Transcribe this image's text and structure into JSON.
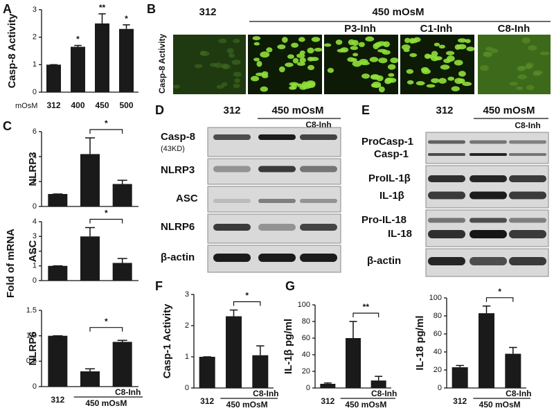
{
  "panel_labels": [
    "A",
    "B",
    "C",
    "D",
    "E",
    "F",
    "G"
  ],
  "panel_b": {
    "control": "312",
    "group": "450 mOsM",
    "treatments": [
      "P3-Inh",
      "C1-Inh",
      "C8-Inh"
    ],
    "row_label": "Casp-8  Activity"
  },
  "panel_c": {
    "ylabel": "Fold of mRNA"
  },
  "panel_d": {
    "control": "312",
    "group": "450 mOsM",
    "treatment": "C8-Inh",
    "rows": [
      "Casp-8",
      "(43KD)",
      "NLRP3",
      "ASC",
      "NLRP6",
      "β-actin"
    ]
  },
  "panel_e": {
    "control": "312",
    "group": "450 mOsM",
    "treatment": "C8-Inh",
    "rows": [
      "ProCasp-1",
      "Casp-1",
      "ProIL-1β",
      "IL-1β",
      "Pro-IL-18",
      "IL-18",
      "β-actin"
    ]
  },
  "chart_data": [
    {
      "type": "bar",
      "ylabel": "Casp-8 Activity",
      "x_prefix": "mOsM",
      "categories": [
        "312",
        "400",
        "450",
        "500"
      ],
      "values": [
        1,
        1.65,
        2.5,
        2.3
      ],
      "errors": [
        0,
        0.05,
        0.35,
        0.15
      ],
      "annotations": [
        null,
        "*",
        "**",
        "*"
      ],
      "ylim": [
        0,
        3
      ],
      "yticks": [
        0,
        1,
        2,
        3
      ],
      "color": "#1a1a1a"
    },
    {
      "type": "bar",
      "ylabel": "NLRP3",
      "values": [
        1,
        4.2,
        1.8
      ],
      "errors": [
        0,
        1.3,
        0.3
      ],
      "significance": "*",
      "ylim": [
        0,
        6
      ],
      "yticks": [
        0,
        2,
        4,
        6
      ],
      "color": "#1a1a1a"
    },
    {
      "type": "bar",
      "ylabel": "ASC",
      "values": [
        1,
        3,
        1.2
      ],
      "errors": [
        0,
        0.6,
        0.3
      ],
      "significance": "*",
      "ylim": [
        0,
        4
      ],
      "yticks": [
        0,
        1,
        2,
        3,
        4
      ],
      "color": "#1a1a1a"
    },
    {
      "type": "bar",
      "ylabel": "NLRP6",
      "categories": [
        "312",
        null,
        "C8-Inh"
      ],
      "group_label": "450 mOsM",
      "values": [
        1,
        0.3,
        0.88
      ],
      "errors": [
        0,
        0.05,
        0.03
      ],
      "significance": "*",
      "ylim": [
        0,
        1.5
      ],
      "yticks": [
        0,
        0.5,
        {
          "value": 1,
          "label": "1.0"
        },
        {
          "value": 1.5,
          "label": "1.5"
        }
      ],
      "color": "#1a1a1a"
    },
    {
      "type": "bar",
      "ylabel": "Casp-1 Activity",
      "categories": [
        "312",
        null,
        "C8-Inh"
      ],
      "group_label": "450 mOsM",
      "values": [
        1,
        2.3,
        1.05
      ],
      "errors": [
        0,
        0.2,
        0.3
      ],
      "significance": "*",
      "ylim": [
        0,
        3
      ],
      "yticks": [
        0,
        1,
        2,
        3
      ],
      "color": "#1a1a1a"
    },
    {
      "type": "bar",
      "ylabel": "IL-1β pg/ml",
      "categories": [
        "312",
        null,
        "C8-Inh"
      ],
      "group_label": "450 mOsM",
      "values": [
        5,
        60,
        9
      ],
      "errors": [
        1,
        20,
        5
      ],
      "significance": "**",
      "ylim": [
        0,
        100
      ],
      "yticks": [
        0,
        20,
        40,
        60,
        80,
        100
      ],
      "color": "#1a1a1a"
    },
    {
      "type": "bar",
      "ylabel": "IL-18 pg/ml",
      "categories": [
        "312",
        null,
        "C8-Inh"
      ],
      "group_label": "450 mOsM",
      "values": [
        23,
        83,
        38
      ],
      "errors": [
        2,
        8,
        7
      ],
      "significance": "*",
      "ylim": [
        0,
        100
      ],
      "yticks": [
        0,
        20,
        40,
        60,
        80,
        100
      ],
      "color": "#1a1a1a"
    }
  ]
}
